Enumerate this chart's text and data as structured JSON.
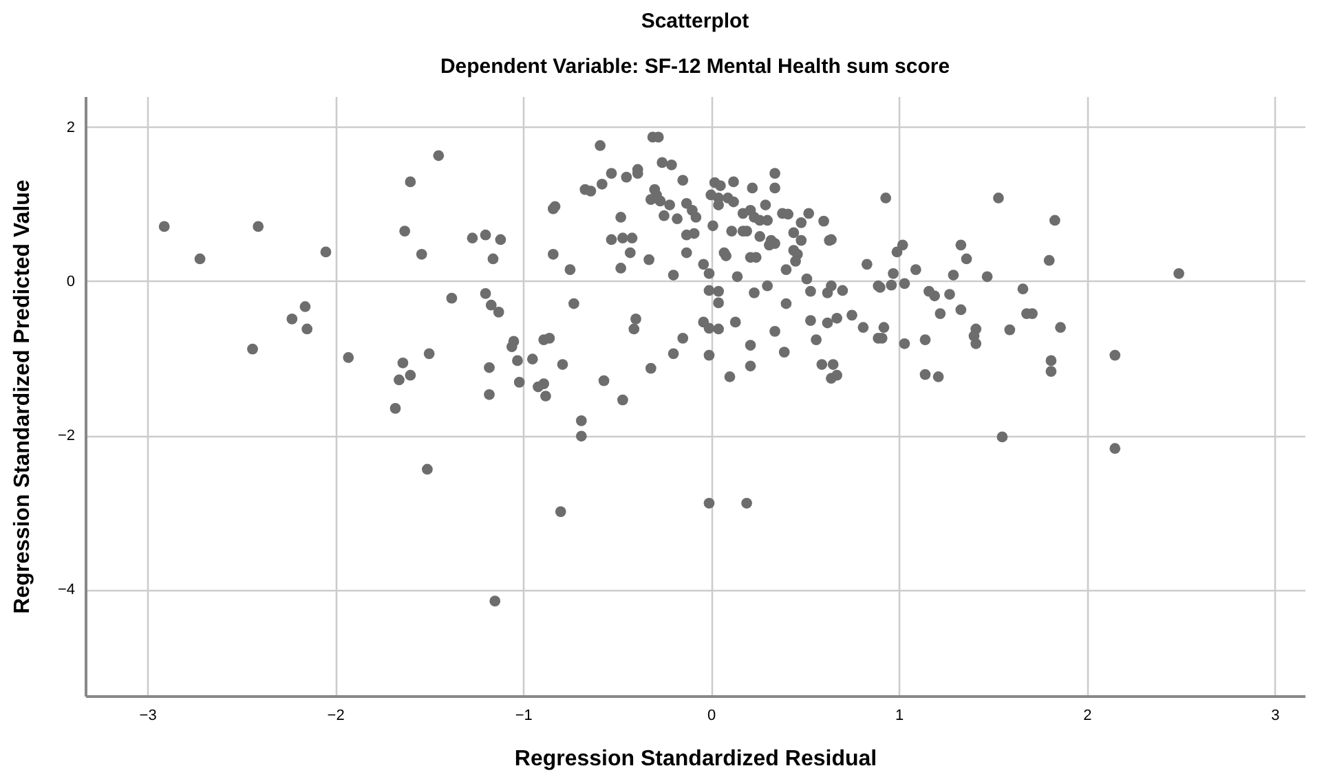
{
  "chart_data": {
    "type": "scatter",
    "title": "Scatterplot",
    "subtitle": "Dependent Variable: SF-12 Mental Health sum score",
    "xlabel": "Regression Standardized Residual",
    "ylabel": "Regression Standardized Predicted Value",
    "xlim": [
      -3.33,
      3.16
    ],
    "ylim": [
      -5.38,
      2.4
    ],
    "xticks": [
      -3,
      -2,
      -1,
      0,
      1,
      2,
      3
    ],
    "yticks": [
      -4,
      -2,
      0,
      2
    ],
    "grid": true,
    "marker": "circle",
    "series": [
      {
        "color": "#6d6d6d",
        "x": [
          -2.91,
          -2.72,
          -2.41,
          -2.44,
          -2.05,
          -2.23,
          -2.16,
          -2.15,
          -1.93,
          -1.45,
          -1.6,
          -1.63,
          -1.54,
          -1.27,
          -1.2,
          -1.16,
          -1.38,
          -1.2,
          -1.17,
          -1.64,
          -1.66,
          -1.6,
          -1.5,
          -1.68,
          -1.18,
          -1.18,
          -1.51,
          -1.15,
          -0.8,
          -0.69,
          -0.69,
          -0.47,
          -0.59,
          -0.31,
          -0.28,
          -0.26,
          -0.21,
          -0.39,
          -0.39,
          -0.53,
          -0.45,
          -0.58,
          -0.67,
          -0.64,
          -0.84,
          -0.83,
          -0.15,
          -0.3,
          -0.29,
          -0.32,
          -0.27,
          -0.22,
          -0.25,
          -0.18,
          -0.13,
          -0.1,
          -0.08,
          -0.48,
          -0.53,
          -0.47,
          -0.42,
          -0.43,
          -0.33,
          -0.13,
          -0.09,
          -0.13,
          -0.04,
          -0.01,
          -0.2,
          -0.48,
          -0.75,
          -0.84,
          -1.12,
          -1.13,
          -0.73,
          -0.4,
          -0.41,
          -1.05,
          -1.06,
          -1.03,
          -0.95,
          -1.02,
          -0.89,
          -0.86,
          -0.79,
          -0.92,
          -0.89,
          -0.88,
          -0.57,
          -0.32,
          -0.2,
          -0.15,
          -0.04,
          -0.01,
          0.04,
          -0.01,
          0.04,
          -0.01,
          0.04,
          0.14,
          0.07,
          0.08,
          0.01,
          0.02,
          0.05,
          0.0,
          0.04,
          0.09,
          0.04,
          0.12,
          0.12,
          0.22,
          0.34,
          0.34,
          0.29,
          0.17,
          0.21,
          0.23,
          0.26,
          0.3,
          0.38,
          0.41,
          0.52,
          0.48,
          0.6,
          0.11,
          0.17,
          0.19,
          0.26,
          0.32,
          0.34,
          0.31,
          0.44,
          0.48,
          0.44,
          0.46,
          0.45,
          0.63,
          0.64,
          0.21,
          0.24,
          0.4,
          0.51,
          0.53,
          0.62,
          0.64,
          0.7,
          0.23,
          0.3,
          0.4,
          0.83,
          0.89,
          0.13,
          0.34,
          0.53,
          0.62,
          0.67,
          0.75,
          0.81,
          0.56,
          0.21,
          0.21,
          0.39,
          0.1,
          0.59,
          0.65,
          0.64,
          0.67,
          0.89,
          -0.01,
          0.19,
          0.93,
          1.53,
          1.83,
          1.02,
          0.99,
          1.33,
          1.36,
          1.8,
          0.97,
          1.09,
          1.29,
          1.47,
          0.9,
          0.96,
          1.03,
          1.16,
          1.19,
          1.27,
          1.66,
          1.22,
          1.33,
          1.68,
          1.71,
          0.92,
          0.91,
          1.41,
          1.4,
          1.41,
          1.59,
          1.86,
          1.03,
          1.14,
          1.14,
          1.21,
          1.81,
          1.81,
          2.15,
          2.49,
          1.55,
          2.15
        ],
        "values": [
          0.71,
          0.29,
          0.71,
          -0.88,
          0.38,
          -0.49,
          -0.33,
          -0.62,
          -0.99,
          1.63,
          1.29,
          0.65,
          0.35,
          0.56,
          0.6,
          0.29,
          -0.22,
          -0.16,
          -0.31,
          -1.06,
          -1.28,
          -1.22,
          -0.94,
          -1.65,
          -1.12,
          -1.47,
          -2.44,
          -4.15,
          -2.99,
          -1.81,
          -2.01,
          -1.54,
          1.76,
          1.87,
          1.87,
          1.54,
          1.51,
          1.45,
          1.4,
          1.4,
          1.35,
          1.26,
          1.19,
          1.17,
          0.94,
          0.97,
          1.31,
          1.19,
          1.12,
          1.06,
          1.04,
          0.99,
          0.85,
          0.81,
          1.01,
          0.92,
          0.83,
          0.83,
          0.54,
          0.56,
          0.56,
          0.37,
          0.28,
          0.6,
          0.62,
          0.37,
          0.22,
          0.1,
          0.08,
          0.17,
          0.15,
          0.35,
          0.54,
          -0.4,
          -0.29,
          -0.49,
          -0.62,
          -0.78,
          -0.85,
          -1.03,
          -1.01,
          -1.31,
          -0.76,
          -0.74,
          -1.08,
          -1.37,
          -1.33,
          -1.49,
          -1.29,
          -1.13,
          -0.94,
          -0.74,
          -0.53,
          -0.61,
          -0.62,
          -0.96,
          -0.28,
          -0.12,
          -0.13,
          0.06,
          0.37,
          0.33,
          0.72,
          1.28,
          1.24,
          1.12,
          1.08,
          1.08,
          0.99,
          1.29,
          1.03,
          1.21,
          1.4,
          1.21,
          0.99,
          0.88,
          0.92,
          0.83,
          0.79,
          0.79,
          0.88,
          0.87,
          0.88,
          0.76,
          0.78,
          0.65,
          0.65,
          0.65,
          0.58,
          0.53,
          0.49,
          0.47,
          0.63,
          0.53,
          0.4,
          0.35,
          0.26,
          0.53,
          0.54,
          0.31,
          0.31,
          0.15,
          0.03,
          -0.13,
          -0.15,
          -0.06,
          -0.12,
          -0.15,
          -0.06,
          -0.29,
          0.22,
          -0.06,
          -0.53,
          -0.65,
          -0.51,
          -0.54,
          -0.48,
          -0.44,
          -0.6,
          -0.76,
          -0.83,
          -1.1,
          -0.92,
          -1.24,
          -1.08,
          -1.08,
          -1.26,
          -1.22,
          -0.74,
          -2.88,
          -2.88,
          1.08,
          1.08,
          0.79,
          0.47,
          0.38,
          0.47,
          0.29,
          0.27,
          0.1,
          0.15,
          0.08,
          0.06,
          -0.08,
          -0.05,
          -0.03,
          -0.13,
          -0.19,
          -0.17,
          -0.1,
          -0.42,
          -0.37,
          -0.42,
          -0.42,
          -0.6,
          -0.74,
          -0.62,
          -0.71,
          -0.81,
          -0.63,
          -0.6,
          -0.81,
          -0.76,
          -1.21,
          -1.24,
          -1.03,
          -1.17,
          -0.96,
          0.1,
          -2.02,
          -2.17
        ]
      }
    ]
  }
}
